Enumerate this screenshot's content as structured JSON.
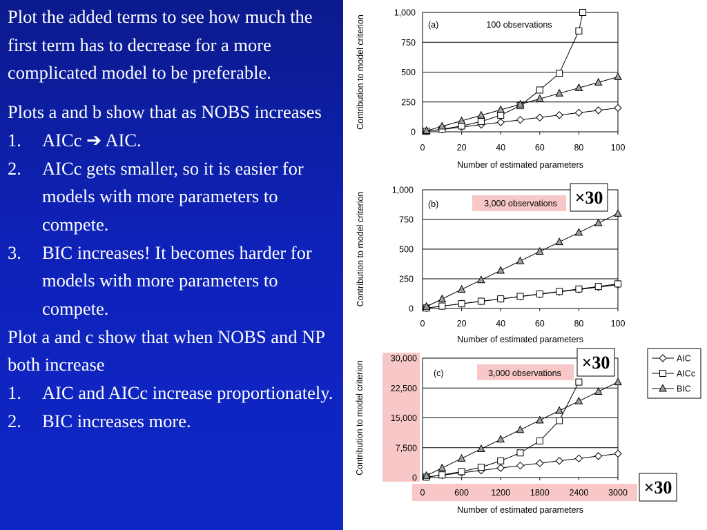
{
  "text": {
    "intro": "Plot the added terms to see how much the first term has to decrease for a more complicated model to be preferable.",
    "p2": "Plots a and b show that as NOBS increases",
    "list1": [
      {
        "num": "1.",
        "pre": "AICc ",
        "arrow": "➔",
        "post": " AIC."
      },
      {
        "num": "2.",
        "pre": "AICc gets smaller, so it is easier for models with more parameters to compete."
      },
      {
        "num": "3.",
        "pre": "BIC increases! It becomes harder for models with more parameters to compete."
      }
    ],
    "p3": "Plot a and c show that when NOBS and NP both increase",
    "list2": [
      {
        "num": "1.",
        "pre": "AIC and AICc increase proportionately."
      },
      {
        "num": "2.",
        "pre": "BIC increases more."
      }
    ]
  },
  "legend": [
    "AIC",
    "AICc",
    "BIC"
  ],
  "multiplier": "×30",
  "colors": {
    "panel": "#0e22b8",
    "highlight": "#f8c8c8",
    "series": "#000000"
  },
  "chart_data": [
    {
      "type": "line",
      "panel_label": "(a)",
      "annotation": "100 observations",
      "xlabel": "Number of estimated parameters",
      "ylabel": "Contribution to model criterion",
      "xlim": [
        0,
        100
      ],
      "ylim": [
        0,
        1000
      ],
      "xticks": [
        "0",
        "20",
        "40",
        "60",
        "80",
        "100"
      ],
      "yticks": [
        "0",
        "250",
        "500",
        "750",
        "1,000"
      ],
      "series": [
        {
          "name": "AIC",
          "marker": "diamond",
          "x": [
            2,
            10,
            20,
            30,
            40,
            50,
            60,
            70,
            80,
            90,
            100
          ],
          "y": [
            4,
            20,
            40,
            60,
            80,
            100,
            120,
            140,
            160,
            180,
            200
          ]
        },
        {
          "name": "AICc",
          "marker": "square",
          "x": [
            2,
            10,
            20,
            30,
            40,
            50,
            60,
            70,
            80,
            82
          ],
          "y": [
            4,
            22,
            49,
            86,
            139,
            219,
            350,
            490,
            845,
            1000
          ]
        },
        {
          "name": "BIC",
          "marker": "triangle",
          "x": [
            2,
            10,
            20,
            30,
            40,
            50,
            60,
            70,
            80,
            90,
            100
          ],
          "y": [
            9,
            46,
            92,
            138,
            184,
            230,
            276,
            322,
            368,
            414,
            460
          ]
        }
      ]
    },
    {
      "type": "line",
      "panel_label": "(b)",
      "annotation": "3,000 observations",
      "xlabel": "Number of estimated parameters",
      "ylabel": "Contribution to model criterion",
      "xlim": [
        0,
        100
      ],
      "ylim": [
        0,
        1000
      ],
      "xticks": [
        "0",
        "20",
        "40",
        "60",
        "80",
        "100"
      ],
      "yticks": [
        "0",
        "250",
        "500",
        "750",
        "1,000"
      ],
      "series": [
        {
          "name": "AIC",
          "marker": "diamond",
          "x": [
            2,
            10,
            20,
            30,
            40,
            50,
            60,
            70,
            80,
            90,
            100
          ],
          "y": [
            4,
            20,
            40,
            60,
            80,
            100,
            120,
            140,
            160,
            180,
            200
          ]
        },
        {
          "name": "AICc",
          "marker": "square",
          "x": [
            2,
            10,
            20,
            30,
            40,
            50,
            60,
            70,
            80,
            90,
            100
          ],
          "y": [
            4,
            20,
            40,
            61,
            81,
            102,
            122,
            143,
            164,
            185,
            207
          ]
        },
        {
          "name": "BIC",
          "marker": "triangle",
          "x": [
            2,
            10,
            20,
            30,
            40,
            50,
            60,
            70,
            80,
            90,
            100
          ],
          "y": [
            16,
            80,
            160,
            240,
            320,
            400,
            480,
            560,
            640,
            720,
            800
          ]
        }
      ]
    },
    {
      "type": "line",
      "panel_label": "(c)",
      "annotation": "3,000 observations",
      "xlabel": "Number of estimated parameters",
      "ylabel": "Contribution to model criterion",
      "xlim": [
        0,
        3000
      ],
      "ylim": [
        0,
        30000
      ],
      "xticks": [
        "0",
        "600",
        "1200",
        "1800",
        "2400",
        "3000"
      ],
      "yticks": [
        "0",
        "7,500",
        "15,000",
        "22,500",
        "30,000"
      ],
      "series": [
        {
          "name": "AIC",
          "marker": "diamond",
          "x": [
            60,
            300,
            600,
            900,
            1200,
            1500,
            1800,
            2100,
            2400,
            2700,
            3000
          ],
          "y": [
            120,
            600,
            1200,
            1800,
            2400,
            3000,
            3600,
            4200,
            4800,
            5400,
            6000
          ]
        },
        {
          "name": "AICc",
          "marker": "square",
          "x": [
            60,
            300,
            600,
            900,
            1200,
            1500,
            1800,
            2100,
            2400
          ],
          "y": [
            123,
            660,
            1500,
            2600,
            4200,
            6200,
            9200,
            14300,
            24000
          ]
        },
        {
          "name": "BIC",
          "marker": "triangle",
          "x": [
            60,
            300,
            600,
            900,
            1200,
            1500,
            1800,
            2100,
            2400,
            2700,
            3000
          ],
          "y": [
            480,
            2400,
            4800,
            7200,
            9600,
            12000,
            14400,
            16800,
            19200,
            21600,
            24000
          ]
        }
      ]
    }
  ]
}
